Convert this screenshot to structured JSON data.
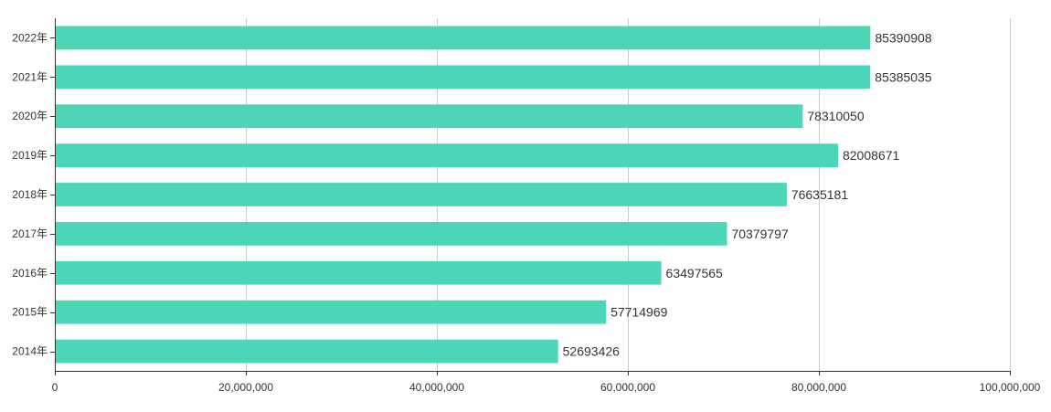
{
  "chart_data": {
    "type": "bar",
    "orientation": "horizontal",
    "categories": [
      "2022年",
      "2021年",
      "2020年",
      "2019年",
      "2018年",
      "2017年",
      "2016年",
      "2015年",
      "2014年"
    ],
    "values": [
      85390908,
      85385035,
      78310050,
      82008671,
      76635181,
      70379797,
      63497565,
      57714969,
      52693426
    ],
    "value_labels": [
      "85390908",
      "85385035",
      "78310050",
      "82008671",
      "76635181",
      "70379797",
      "63497565",
      "57714969",
      "52693426"
    ],
    "x_ticks": [
      0,
      20000000,
      40000000,
      60000000,
      80000000,
      100000000
    ],
    "x_tick_labels": [
      "0",
      "20,000,000",
      "40,000,000",
      "60,000,000",
      "80,000,000",
      "100,000,000"
    ],
    "xlim": [
      0,
      100000000
    ],
    "title": "",
    "xlabel": "",
    "ylabel": "",
    "grid": "vertical",
    "legend": "none",
    "colors": {
      "bar": "#4cd5b6",
      "grid": "#cccccc",
      "axis": "#333333",
      "text": "#333333"
    }
  }
}
